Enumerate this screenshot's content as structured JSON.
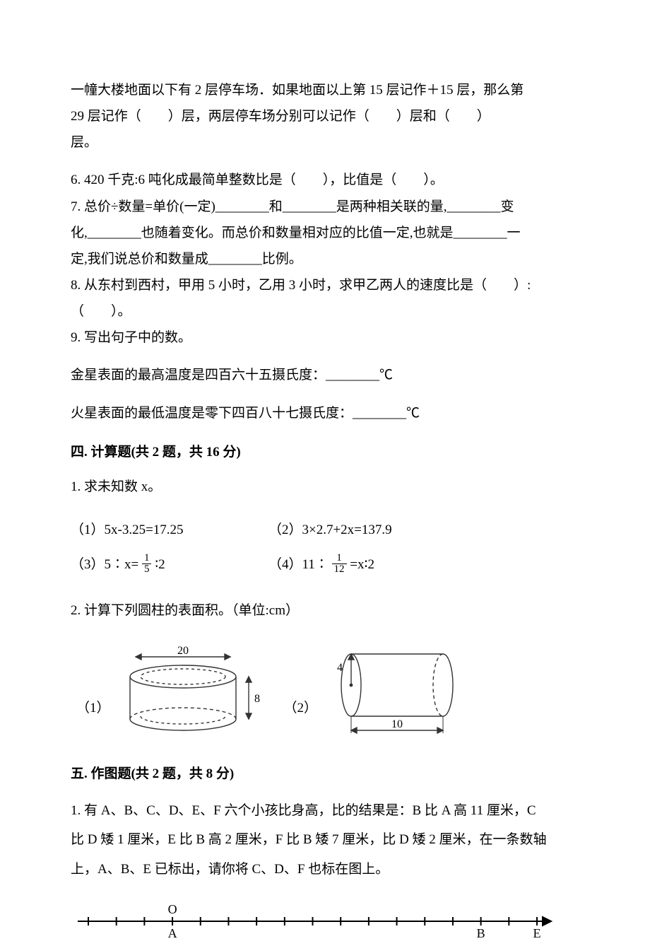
{
  "q_pre": {
    "l1": "一幢大楼地面以下有 2 层停车场．如果地面以上第 15 层记作＋15 层，那么第",
    "l2": "29 层记作（　　）层，两层停车场分别可以记作（　　）层和（　　）",
    "l3": "层。"
  },
  "q6": "6. 420 千克:6 吨化成最简单整数比是（　　），比值是（　　）。",
  "q7": {
    "l1": "7. 总价÷数量=单价(一定)________和________是两种相关联的量,________变",
    "l2": "化,________也随着变化。而总价和数量相对应的比值一定,也就是________一",
    "l3": "定,我们说总价和数量成________比例。"
  },
  "q8": {
    "l1": "8. 从东村到西村，甲用 5 小时，乙用 3 小时，求甲乙两人的速度比是（　　）:",
    "l2": "（　　）。"
  },
  "q9": {
    "title": "9. 写出句子中的数。",
    "l1": "金星表面的最高温度是四百六十五摄氏度：________℃",
    "l2": "火星表面的最低温度是零下四百八十七摄氏度：________℃"
  },
  "sec4": {
    "title": "四. 计算题(共 2 题，共 16 分)",
    "q1": "1. 求未知数 x。",
    "eq1_l": "（1）5x-3.25=17.25",
    "eq1_r": "（2）3×2.7+2x=137.9",
    "eq2_l_pre": "（3）5∶x= ",
    "eq2_l_frac_num": "1",
    "eq2_l_frac_den": "5",
    "eq2_l_post": " ∶2",
    "eq2_r_pre": "（4）11∶ ",
    "eq2_r_frac_num": "1",
    "eq2_r_frac_den": "12",
    "eq2_r_post": " =x∶2",
    "q2": "2. 计算下列圆柱的表面积。（单位:cm）",
    "fig1_label": "（1）",
    "fig2_label": "（2）",
    "fig1": {
      "diameter": "20",
      "height": "8"
    },
    "fig2": {
      "radius": "4",
      "width": "10"
    }
  },
  "sec5": {
    "title": "五. 作图题(共 2 题，共 8 分)",
    "q1": {
      "l1": "1. 有 A、B、C、D、E、F 六个小孩比身高，比的结果是：B 比 A 高 11 厘米，C",
      "l2": "比 D 矮 1 厘米，E 比 B 高 2 厘米，F 比 B 矮 7 厘米，比 D 矮 2 厘米，在一条数轴",
      "l3": "上，A、B、E 已标出，请你将 C、D、F 也标在图上。"
    },
    "nl": {
      "O": "O",
      "A": "A",
      "B": "B",
      "E": "E",
      "tick_count": 17,
      "A_tick": 4,
      "B_tick": 15,
      "E_tick": 17,
      "line_width": 680
    }
  },
  "colors": {
    "text": "#000000",
    "bg": "#ffffff",
    "stroke": "#333333",
    "dash": "#555555"
  }
}
